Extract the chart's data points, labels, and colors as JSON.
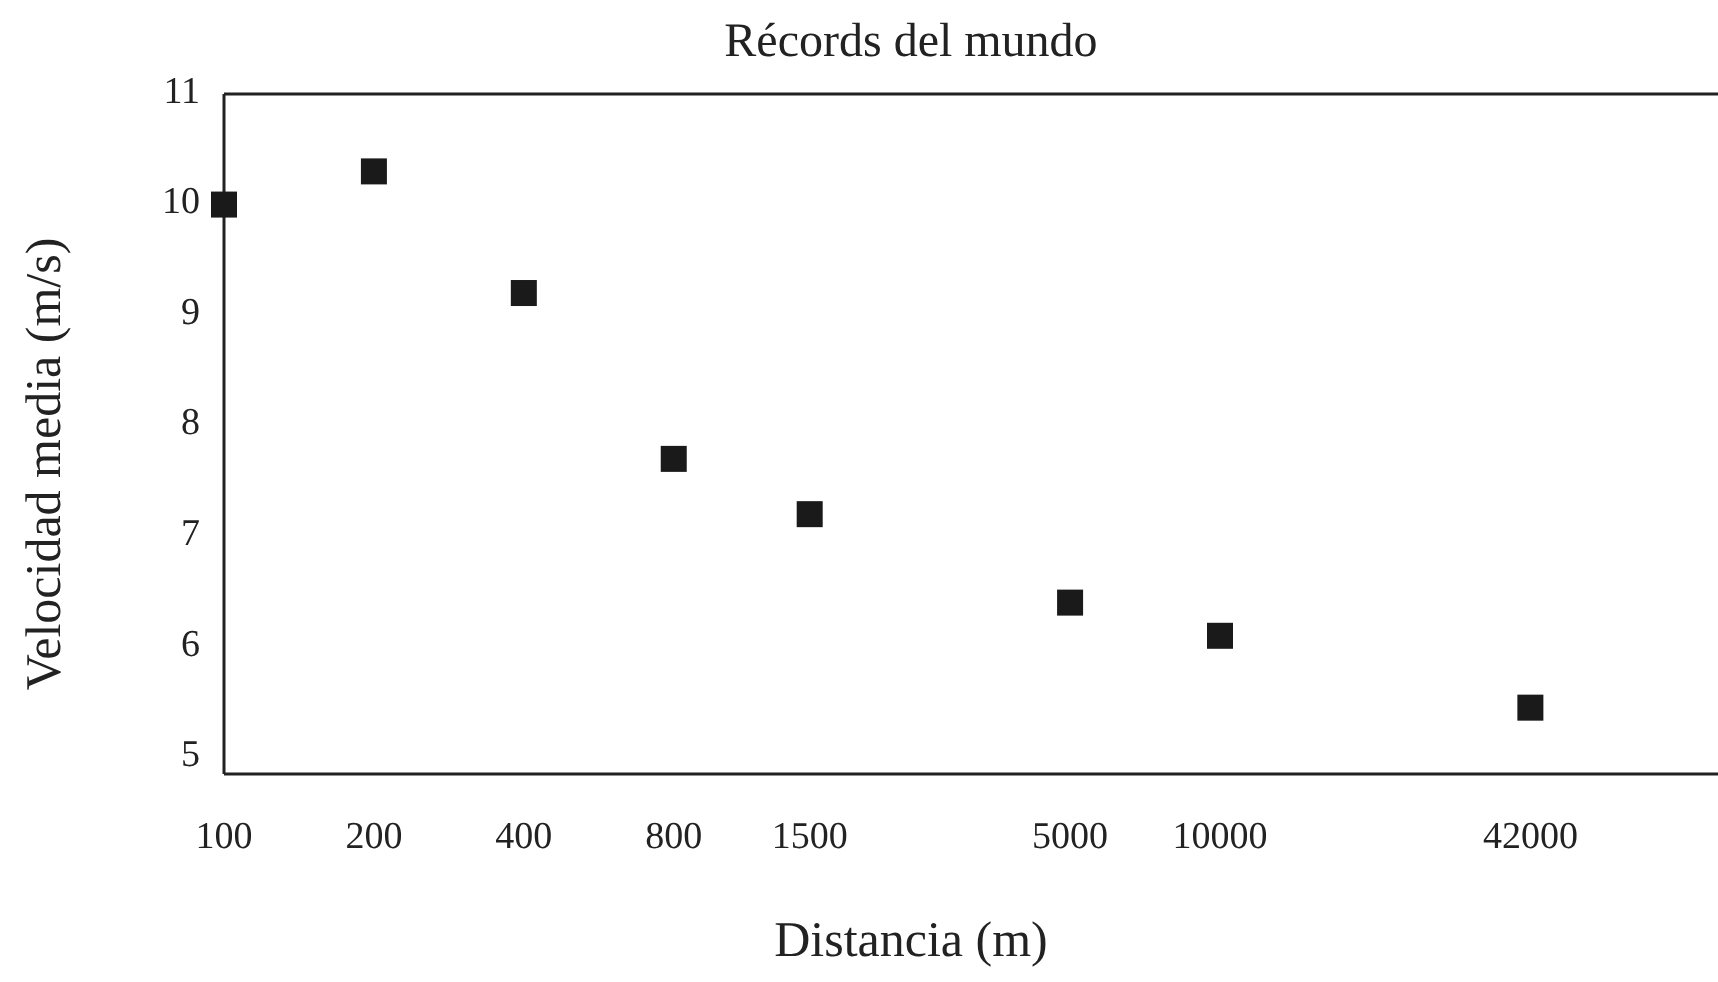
{
  "chart_data": {
    "type": "scatter",
    "title": "Récords del mundo",
    "xlabel": "Distancia (m)",
    "ylabel": "Velocidad media (m/s)",
    "x": [
      100,
      200,
      400,
      800,
      1500,
      5000,
      10000,
      42000
    ],
    "series": [
      {
        "color": "#1a1a1a",
        "values": [
          10.0,
          10.3,
          9.2,
          7.7,
          7.2,
          6.4,
          6.1,
          5.45
        ]
      }
    ],
    "log": "x",
    "xlim": [
      100,
      100000
    ],
    "xticks": [
      100,
      200,
      400,
      800,
      1500,
      5000,
      10000,
      42000
    ],
    "ylim": [
      4.85,
      11
    ],
    "yticks": [
      5,
      6,
      7,
      8,
      9,
      10,
      11
    ],
    "marker": "square"
  }
}
